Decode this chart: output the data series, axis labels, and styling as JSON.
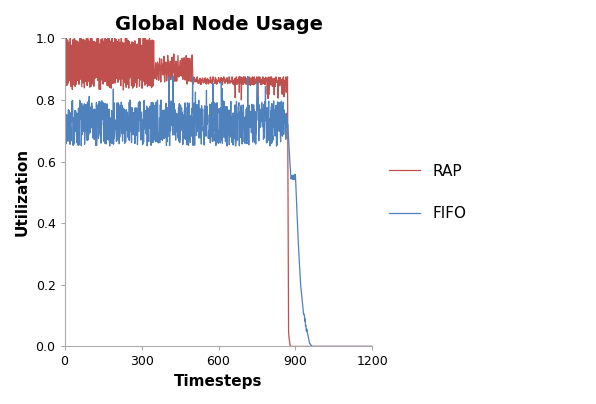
{
  "title": "Global Node Usage",
  "xlabel": "Timesteps",
  "ylabel": "Utilization",
  "xlim": [
    0,
    1200
  ],
  "ylim": [
    0,
    1.0
  ],
  "xticks": [
    0,
    300,
    600,
    900,
    1200
  ],
  "yticks": [
    0,
    0.2,
    0.4,
    0.6,
    0.8,
    1
  ],
  "rap_color": "#c0504d",
  "fifo_color": "#4f81bd",
  "rap_label": "RAP",
  "fifo_label": "FIFO",
  "title_fontsize": 14,
  "axis_label_fontsize": 11,
  "legend_fontsize": 11,
  "linewidth": 0.9,
  "background_color": "#ffffff"
}
